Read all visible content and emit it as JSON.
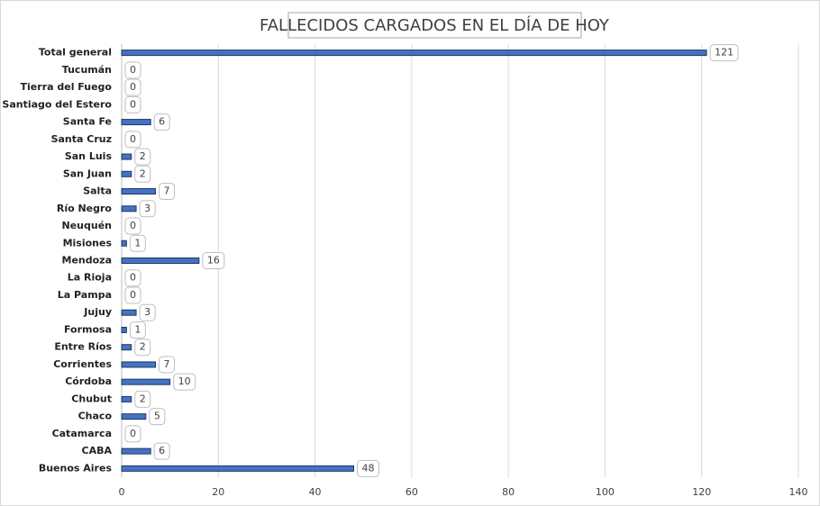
{
  "chart_data": {
    "type": "bar",
    "orientation": "horizontal",
    "title": "FALLECIDOS CARGADOS EN EL DÍA DE HOY",
    "categories": [
      "Total general",
      "Tucumán",
      "Tierra del Fuego",
      "Santiago del Estero",
      "Santa Fe",
      "Santa Cruz",
      "San Luis",
      "San Juan",
      "Salta",
      "Río Negro",
      "Neuquén",
      "Misiones",
      "Mendoza",
      "La Rioja",
      "La Pampa",
      "Jujuy",
      "Formosa",
      "Entre Ríos",
      "Corrientes",
      "Córdoba",
      "Chubut",
      "Chaco",
      "Catamarca",
      "CABA",
      "Buenos Aires"
    ],
    "values": [
      121,
      0,
      0,
      0,
      6,
      0,
      2,
      2,
      7,
      3,
      0,
      1,
      16,
      0,
      0,
      3,
      1,
      2,
      7,
      10,
      2,
      5,
      0,
      6,
      48
    ],
    "color": "#4472c4",
    "xlim": [
      0,
      140
    ],
    "xticks": [
      0,
      20,
      40,
      60,
      80,
      100,
      120,
      140
    ],
    "grid": true
  }
}
